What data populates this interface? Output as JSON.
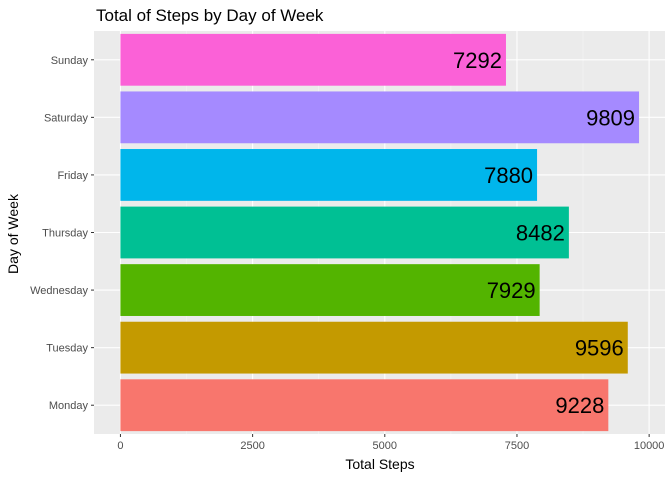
{
  "chart_data": {
    "type": "bar",
    "orientation": "horizontal",
    "title": "Total of Steps by Day of Week",
    "xlabel": "Total Steps",
    "ylabel": "Day of Week",
    "categories": [
      "Monday",
      "Tuesday",
      "Wednesday",
      "Thursday",
      "Friday",
      "Saturday",
      "Sunday"
    ],
    "values": [
      9228,
      9596,
      7929,
      8482,
      7880,
      9809,
      7292
    ],
    "data_labels": [
      "9228",
      "9596",
      "7929",
      "8482",
      "7880",
      "9809",
      "7292"
    ],
    "colors": [
      "#F8766D",
      "#C49A00",
      "#53B400",
      "#00C094",
      "#00B6EB",
      "#A58AFF",
      "#FB61D7"
    ],
    "xlim": [
      -500,
      10300
    ],
    "x_ticks": [
      0,
      2500,
      5000,
      7500,
      10000
    ],
    "x_tick_labels": [
      "0",
      "2500",
      "5000",
      "7500",
      "10000"
    ],
    "grid": true,
    "legend": "none",
    "panel_background": "#EBEBEB"
  }
}
